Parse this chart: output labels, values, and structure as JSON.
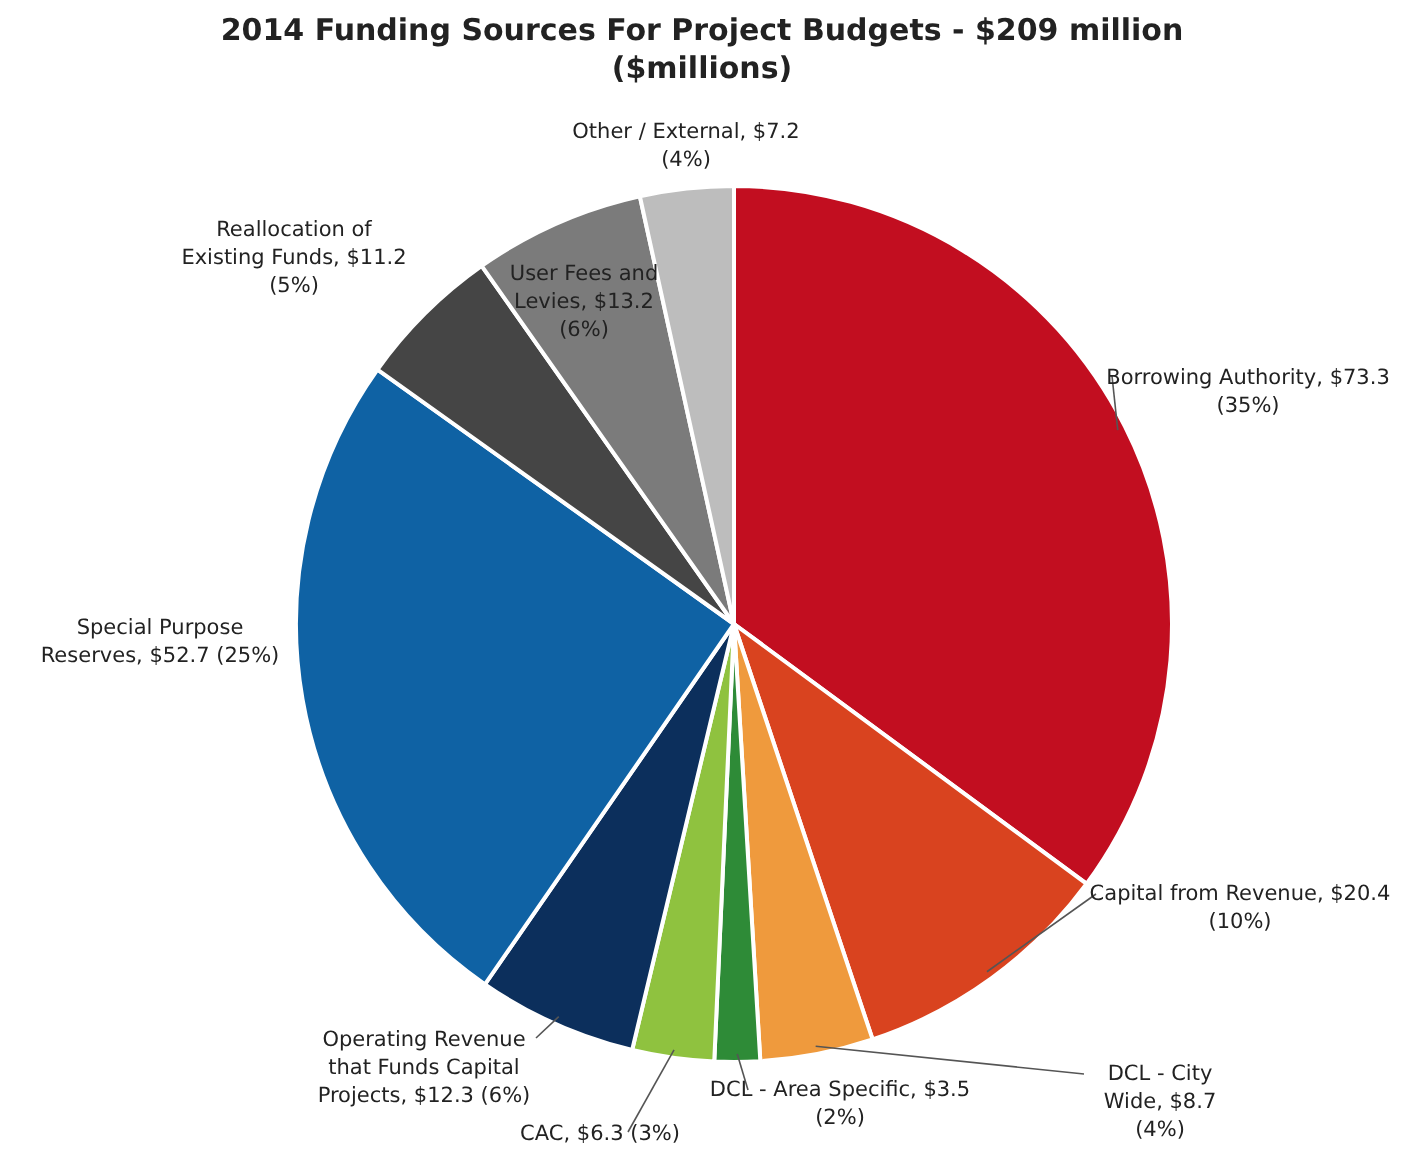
{
  "chart_data": {
    "type": "pie",
    "title": "2014 Funding Sources For Project Budgets - $209 million",
    "subtitle": "($millions)",
    "categories": [
      "Borrowing Authority",
      "Capital from Revenue",
      "DCL - City Wide",
      "DCL - Area Specific",
      "CAC",
      "Operating Revenue that Funds Capital Projects",
      "Special Purpose Reserves",
      "Reallocation of Existing Funds",
      "User Fees and Levies",
      "Other / External"
    ],
    "values": [
      73.3,
      20.4,
      8.7,
      3.5,
      6.3,
      12.3,
      52.7,
      11.2,
      13.2,
      7.2
    ],
    "value_labels": [
      "$73.3 (35%)",
      "$20.4 (10%)",
      "$8.7 (4%)",
      "$3.5 (2%)",
      "$6.3 (3%)",
      "$12.3 (6%)",
      "$52.7 (25%)",
      "$11.2 (5%)",
      "$13.2 (6%)",
      "$7.2 (4%)"
    ],
    "colors": [
      "#c20e20",
      "#d9431f",
      "#ef9a3d",
      "#2e8b37",
      "#8fc23f",
      "#0c2f5c",
      "#0f62a4",
      "#454545",
      "#7b7b7b",
      "#bdbdbd"
    ]
  }
}
